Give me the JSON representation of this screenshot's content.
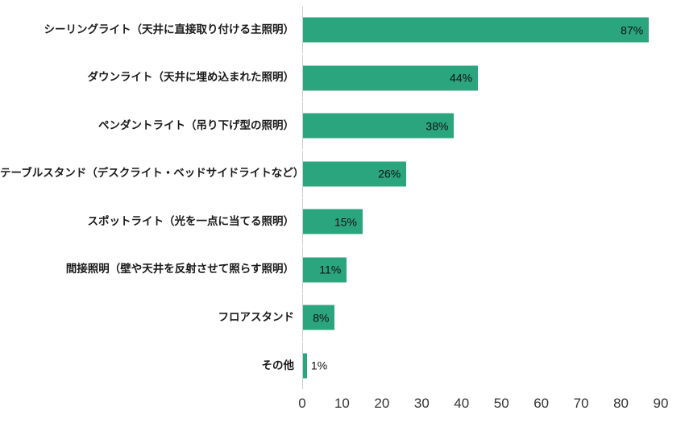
{
  "chart_data": {
    "type": "bar",
    "orientation": "horizontal",
    "title": "",
    "xlabel": "",
    "ylabel": "",
    "categories": [
      "シーリングライト（天井に直接取り付ける主照明）",
      "ダウンライト（天井に埋め込まれた照明）",
      "ペンダントライト（吊り下げ型の照明）",
      "テーブルスタンド（デスクライト・ベッドサイドライトなど）",
      "スポットライト（光を一点に当てる照明）",
      "間接照明（壁や天井を反射させて照らす照明）",
      "フロアスタンド",
      "その他"
    ],
    "values": [
      87,
      44,
      38,
      26,
      15,
      11,
      8,
      1
    ],
    "value_labels": [
      "87%",
      "44%",
      "38%",
      "26%",
      "15%",
      "11%",
      "8%",
      "1%"
    ],
    "xlim": [
      0,
      90
    ],
    "xticks": [
      0,
      10,
      20,
      30,
      40,
      50,
      60,
      70,
      80,
      90
    ],
    "bar_color": "#2BA57E",
    "grid": false,
    "legend": "none",
    "inside_label_min_value": 5
  }
}
